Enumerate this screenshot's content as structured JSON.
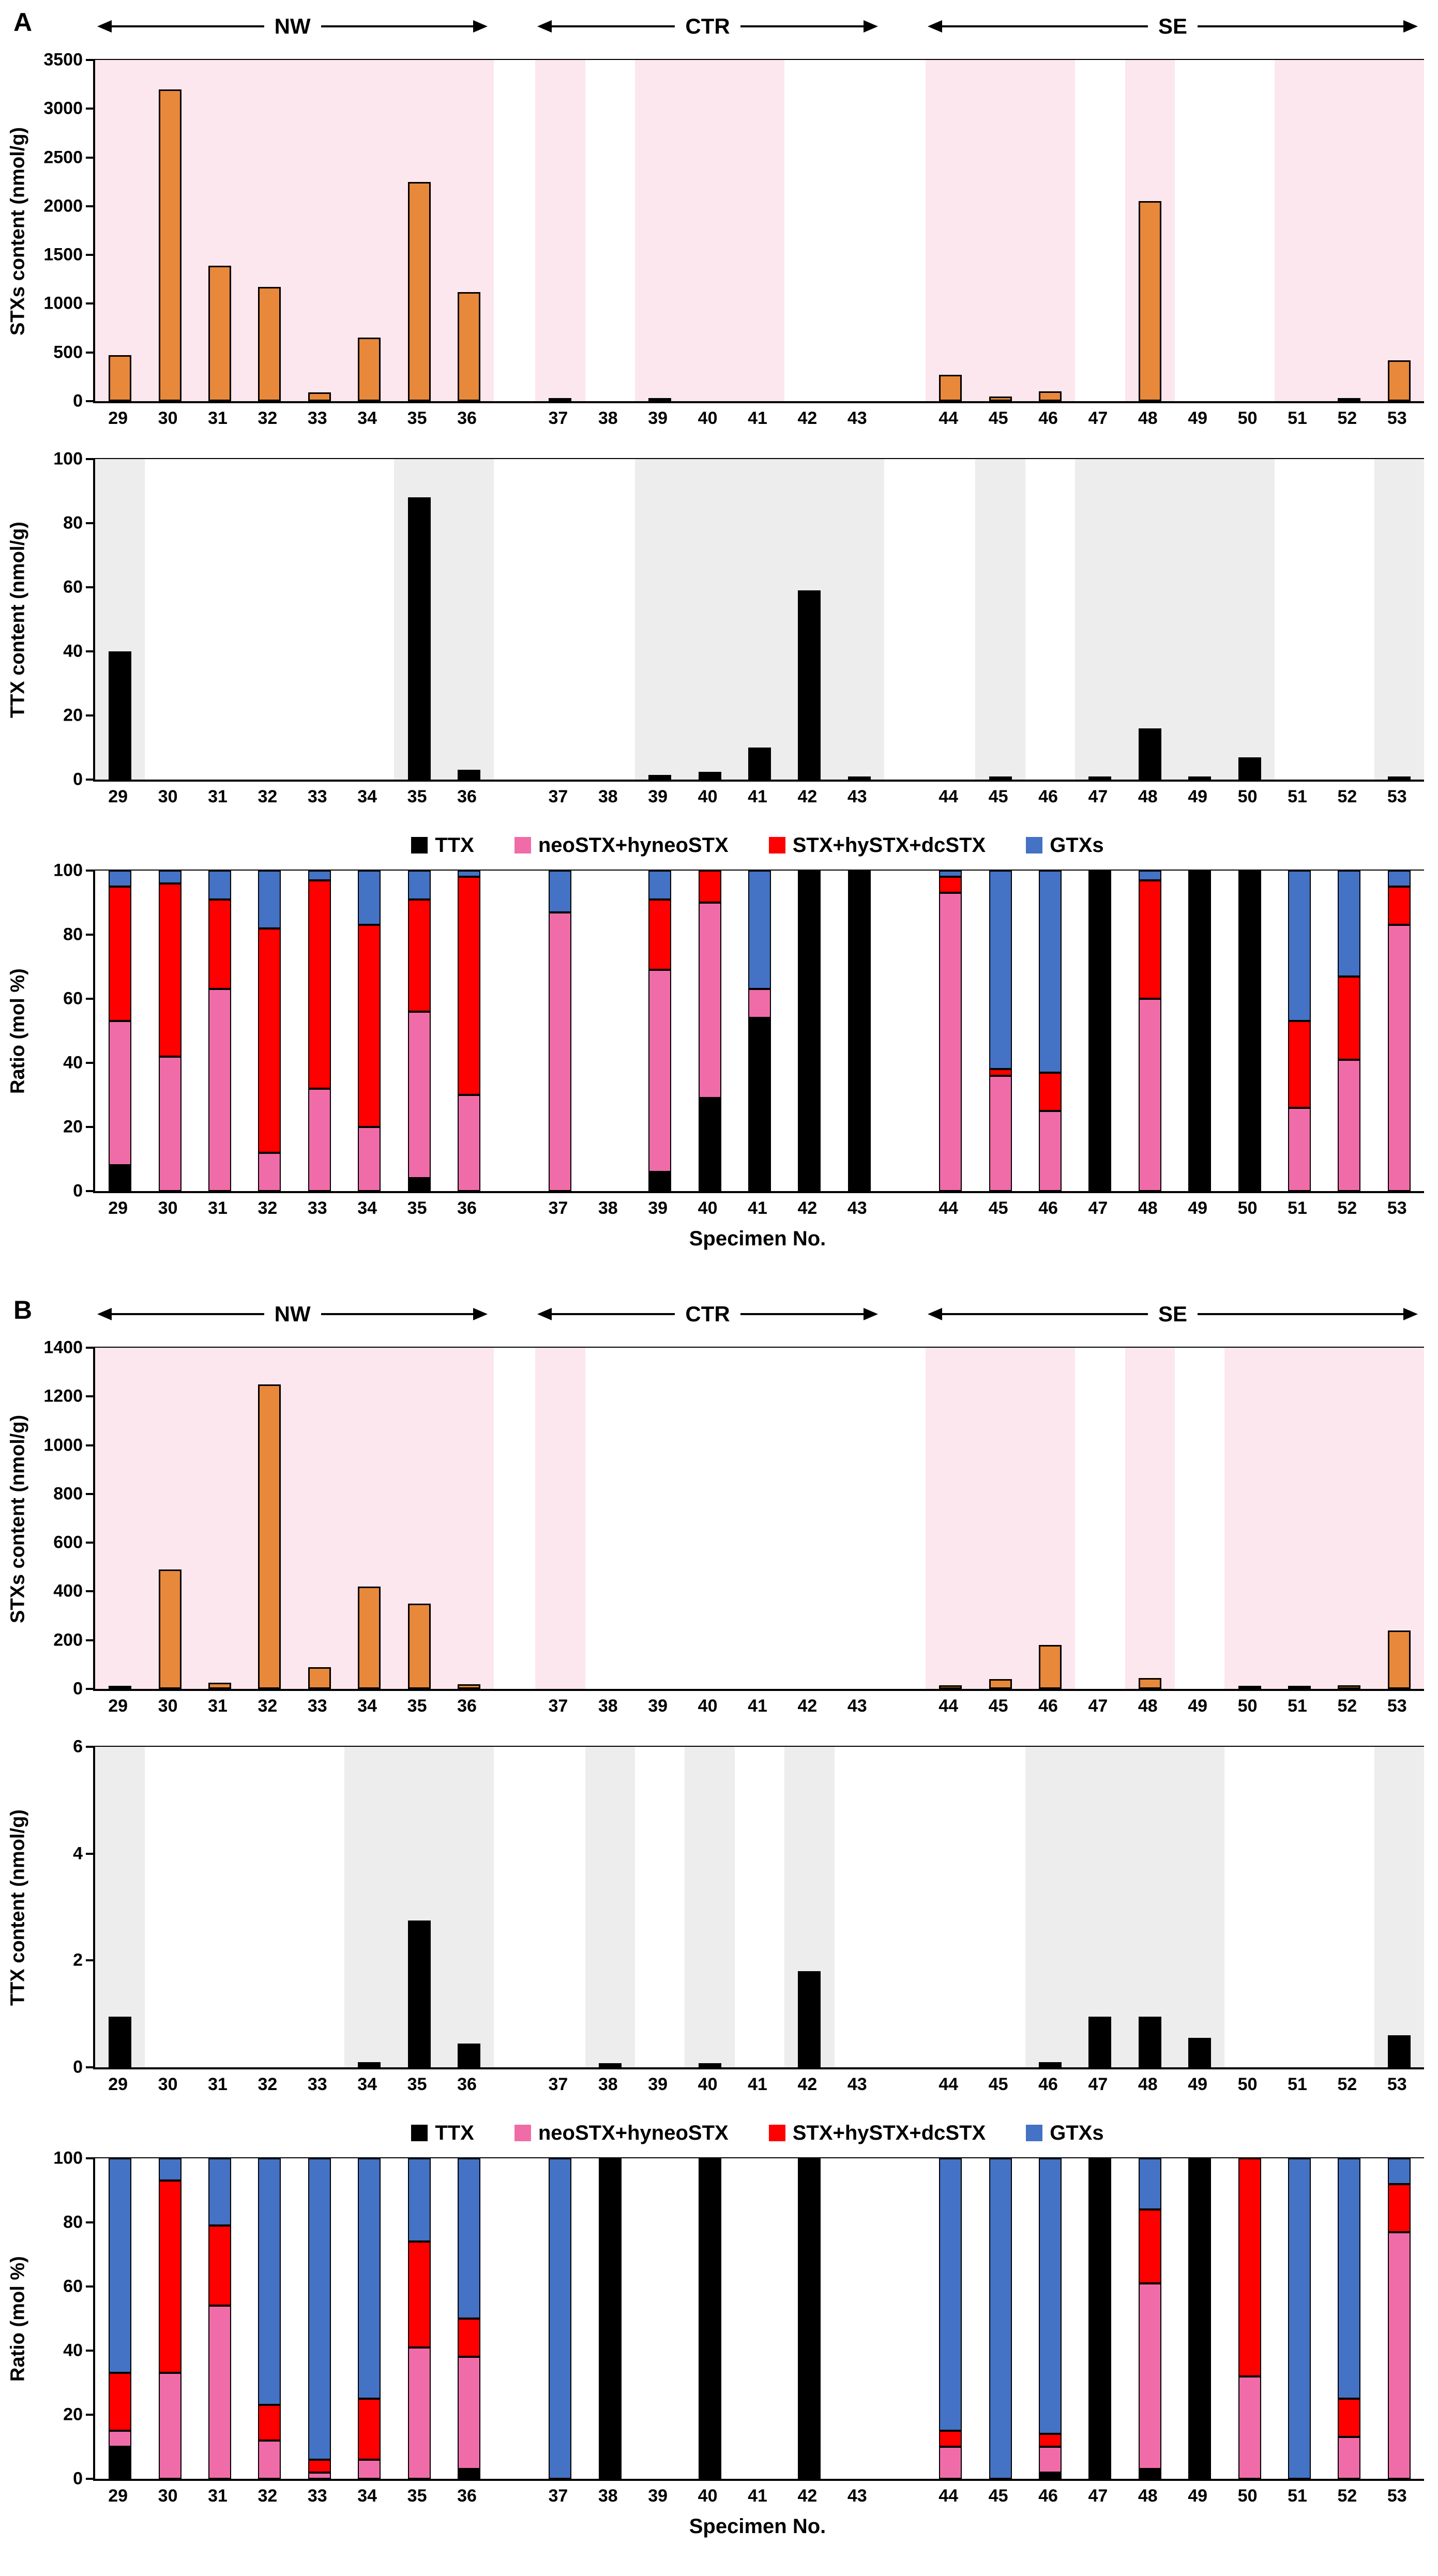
{
  "figure": {
    "panels": [
      {
        "label": "A"
      },
      {
        "label": "B"
      }
    ],
    "x_axis": {
      "xlabel": "Specimen No.",
      "specimens": [
        29,
        30,
        31,
        32,
        33,
        34,
        35,
        36,
        37,
        38,
        39,
        40,
        41,
        42,
        43,
        44,
        45,
        46,
        47,
        48,
        49,
        50,
        51,
        52,
        53
      ],
      "groups": [
        {
          "label": "NW",
          "count": 8
        },
        {
          "label": "CTR",
          "count": 7
        },
        {
          "label": "SE",
          "count": 10
        }
      ]
    },
    "legend": [
      {
        "name": "TTX",
        "color": "#000000"
      },
      {
        "name": "neoSTX+hyneoSTX",
        "color": "#F06CA8"
      },
      {
        "name": "STX+hySTX+dcSTX",
        "color": "#FF0000"
      },
      {
        "name": "GTXs",
        "color": "#4472C4"
      }
    ],
    "colors": {
      "stx_bar": "#E8883B",
      "ttx_bar": "#000000",
      "stx_shade": "#FCE7EE",
      "ttx_shade": "#EDEDED"
    }
  },
  "chart_data": [
    {
      "id": "A-stx",
      "panel": "A",
      "type": "bar",
      "ylabel": "STXs content (nmol/g)",
      "ylim": [
        0,
        3500
      ],
      "yticks": [
        0,
        500,
        1000,
        1500,
        2000,
        2500,
        3000,
        3500
      ],
      "categories": [
        29,
        30,
        31,
        32,
        33,
        34,
        35,
        36,
        37,
        38,
        39,
        40,
        41,
        42,
        43,
        44,
        45,
        46,
        47,
        48,
        49,
        50,
        51,
        52,
        53
      ],
      "values": [
        470,
        3200,
        1390,
        1170,
        90,
        650,
        2250,
        1120,
        25,
        0,
        15,
        0,
        0,
        0,
        0,
        270,
        50,
        100,
        0,
        2050,
        0,
        0,
        0,
        15,
        420
      ],
      "bar_color": "#E8883B",
      "shade_color": "#FCE7EE",
      "shaded_ranges": [
        [
          29,
          36
        ],
        [
          37,
          37
        ],
        [
          39,
          41
        ],
        [
          44,
          46
        ],
        [
          48,
          48
        ],
        [
          51,
          53
        ]
      ]
    },
    {
      "id": "A-ttx",
      "panel": "A",
      "type": "bar",
      "ylabel": "TTX content (nmol/g)",
      "ylim": [
        0,
        100
      ],
      "yticks": [
        0,
        20,
        40,
        60,
        80,
        100
      ],
      "categories": [
        29,
        30,
        31,
        32,
        33,
        34,
        35,
        36,
        37,
        38,
        39,
        40,
        41,
        42,
        43,
        44,
        45,
        46,
        47,
        48,
        49,
        50,
        51,
        52,
        53
      ],
      "values": [
        40,
        0,
        0,
        0,
        0,
        0,
        88,
        3,
        0,
        0,
        1.5,
        2.5,
        10,
        59,
        1,
        0,
        0.5,
        0,
        0.5,
        16,
        1,
        7,
        0,
        0,
        1
      ],
      "bar_color": "#000000",
      "shade_color": "#EDEDED",
      "shaded_ranges": [
        [
          29,
          29
        ],
        [
          35,
          36
        ],
        [
          39,
          43
        ],
        [
          45,
          45
        ],
        [
          47,
          50
        ],
        [
          53,
          53
        ]
      ]
    },
    {
      "id": "A-ratio",
      "panel": "A",
      "type": "stacked_bar",
      "ylabel": "Ratio (mol %)",
      "ylim": [
        0,
        100
      ],
      "yticks": [
        0,
        20,
        40,
        60,
        80,
        100
      ],
      "categories": [
        29,
        30,
        31,
        32,
        33,
        34,
        35,
        36,
        37,
        38,
        39,
        40,
        41,
        42,
        43,
        44,
        45,
        46,
        47,
        48,
        49,
        50,
        51,
        52,
        53
      ],
      "series": [
        {
          "name": "TTX",
          "color": "#000000",
          "values": [
            8,
            0,
            0,
            0,
            0,
            0,
            4,
            0,
            0,
            0,
            6,
            29,
            54,
            100,
            100,
            0,
            0,
            0,
            100,
            0,
            100,
            100,
            0,
            0,
            0
          ]
        },
        {
          "name": "neoSTX+hyneoSTX",
          "color": "#F06CA8",
          "values": [
            45,
            42,
            63,
            12,
            32,
            20,
            52,
            30,
            87,
            0,
            63,
            61,
            9,
            0,
            0,
            93,
            36,
            25,
            0,
            60,
            0,
            0,
            26,
            41,
            83
          ]
        },
        {
          "name": "STX+hySTX+dcSTX",
          "color": "#FF0000",
          "values": [
            42,
            54,
            28,
            70,
            65,
            63,
            35,
            68,
            0,
            0,
            22,
            10,
            0,
            0,
            0,
            5,
            2,
            12,
            0,
            37,
            0,
            0,
            27,
            26,
            12
          ]
        },
        {
          "name": "GTXs",
          "color": "#4472C4",
          "values": [
            5,
            4,
            9,
            18,
            3,
            17,
            9,
            2,
            13,
            0,
            9,
            0,
            37,
            0,
            0,
            2,
            62,
            63,
            0,
            3,
            0,
            0,
            47,
            33,
            5
          ]
        }
      ]
    },
    {
      "id": "B-stx",
      "panel": "B",
      "type": "bar",
      "ylabel": "STXs content (nmol/g)",
      "ylim": [
        0,
        1400
      ],
      "yticks": [
        0,
        200,
        400,
        600,
        800,
        1000,
        1200,
        1400
      ],
      "categories": [
        29,
        30,
        31,
        32,
        33,
        34,
        35,
        36,
        37,
        38,
        39,
        40,
        41,
        42,
        43,
        44,
        45,
        46,
        47,
        48,
        49,
        50,
        51,
        52,
        53
      ],
      "values": [
        10,
        490,
        25,
        1250,
        90,
        420,
        350,
        20,
        0,
        0,
        0,
        0,
        0,
        0,
        0,
        15,
        40,
        180,
        0,
        45,
        0,
        5,
        5,
        15,
        240
      ],
      "bar_color": "#E8883B",
      "shade_color": "#FCE7EE",
      "shaded_ranges": [
        [
          29,
          36
        ],
        [
          37,
          37
        ],
        [
          44,
          46
        ],
        [
          48,
          48
        ],
        [
          50,
          53
        ]
      ]
    },
    {
      "id": "B-ttx",
      "panel": "B",
      "type": "bar",
      "ylabel": "TTX content (nmol/g)",
      "ylim": [
        0,
        6
      ],
      "yticks": [
        0,
        2,
        4,
        6
      ],
      "categories": [
        29,
        30,
        31,
        32,
        33,
        34,
        35,
        36,
        37,
        38,
        39,
        40,
        41,
        42,
        43,
        44,
        45,
        46,
        47,
        48,
        49,
        50,
        51,
        52,
        53
      ],
      "values": [
        0.95,
        0,
        0,
        0,
        0,
        0.1,
        2.75,
        0.45,
        0,
        0.08,
        0,
        0.08,
        0,
        1.8,
        0,
        0,
        0,
        0.1,
        0.95,
        0.95,
        0.55,
        0,
        0,
        0,
        0.6
      ],
      "bar_color": "#000000",
      "shade_color": "#EDEDED",
      "shaded_ranges": [
        [
          29,
          29
        ],
        [
          34,
          36
        ],
        [
          38,
          38
        ],
        [
          40,
          40
        ],
        [
          42,
          42
        ],
        [
          46,
          49
        ],
        [
          53,
          53
        ]
      ]
    },
    {
      "id": "B-ratio",
      "panel": "B",
      "type": "stacked_bar",
      "ylabel": "Ratio (mol %)",
      "ylim": [
        0,
        100
      ],
      "yticks": [
        0,
        20,
        40,
        60,
        80,
        100
      ],
      "categories": [
        29,
        30,
        31,
        32,
        33,
        34,
        35,
        36,
        37,
        38,
        39,
        40,
        41,
        42,
        43,
        44,
        45,
        46,
        47,
        48,
        49,
        50,
        51,
        52,
        53
      ],
      "series": [
        {
          "name": "TTX",
          "color": "#000000",
          "values": [
            10,
            0,
            0,
            0,
            0,
            0,
            0,
            3,
            0,
            100,
            0,
            100,
            0,
            100,
            0,
            0,
            0,
            2,
            100,
            3,
            100,
            0,
            0,
            0,
            0
          ]
        },
        {
          "name": "neoSTX+hyneoSTX",
          "color": "#F06CA8",
          "values": [
            5,
            33,
            54,
            12,
            2,
            6,
            41,
            35,
            0,
            0,
            0,
            0,
            0,
            0,
            0,
            10,
            0,
            8,
            0,
            58,
            0,
            32,
            0,
            13,
            77
          ]
        },
        {
          "name": "STX+hySTX+dcSTX",
          "color": "#FF0000",
          "values": [
            18,
            60,
            25,
            11,
            4,
            19,
            33,
            12,
            0,
            0,
            0,
            0,
            0,
            0,
            0,
            5,
            0,
            4,
            0,
            23,
            0,
            68,
            0,
            12,
            15
          ]
        },
        {
          "name": "GTXs",
          "color": "#4472C4",
          "values": [
            67,
            7,
            21,
            77,
            94,
            75,
            26,
            50,
            100,
            0,
            0,
            0,
            0,
            0,
            0,
            85,
            100,
            86,
            0,
            16,
            0,
            0,
            100,
            75,
            8
          ]
        }
      ]
    }
  ]
}
